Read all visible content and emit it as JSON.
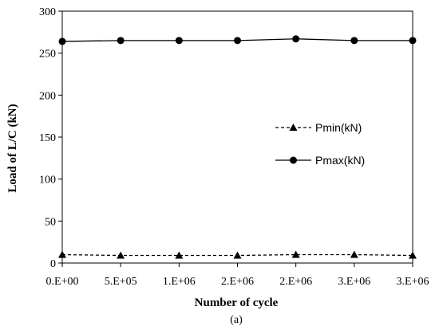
{
  "chart_data": {
    "type": "line",
    "title": "",
    "xlabel": "Number of cycle",
    "ylabel": "Load of L/C (kN)",
    "caption": "(a)",
    "categories": [
      "0.E+00",
      "5.E+05",
      "1.E+06",
      "2.E+06",
      "2.E+06",
      "3.E+06",
      "3.E+06"
    ],
    "ylim": [
      0,
      300
    ],
    "yticks": [
      0,
      50,
      100,
      150,
      200,
      250,
      300
    ],
    "grid": false,
    "legend_position": "right",
    "series": [
      {
        "name": "Pmin(kN)",
        "values": [
          10,
          9,
          9,
          9,
          10,
          10,
          9
        ],
        "line_style": "dashed",
        "marker": "triangle",
        "color": "#000000"
      },
      {
        "name": "Pmax(kN)",
        "values": [
          264,
          265,
          265,
          265,
          267,
          265,
          265
        ],
        "line_style": "solid",
        "marker": "circle",
        "color": "#000000"
      }
    ]
  }
}
